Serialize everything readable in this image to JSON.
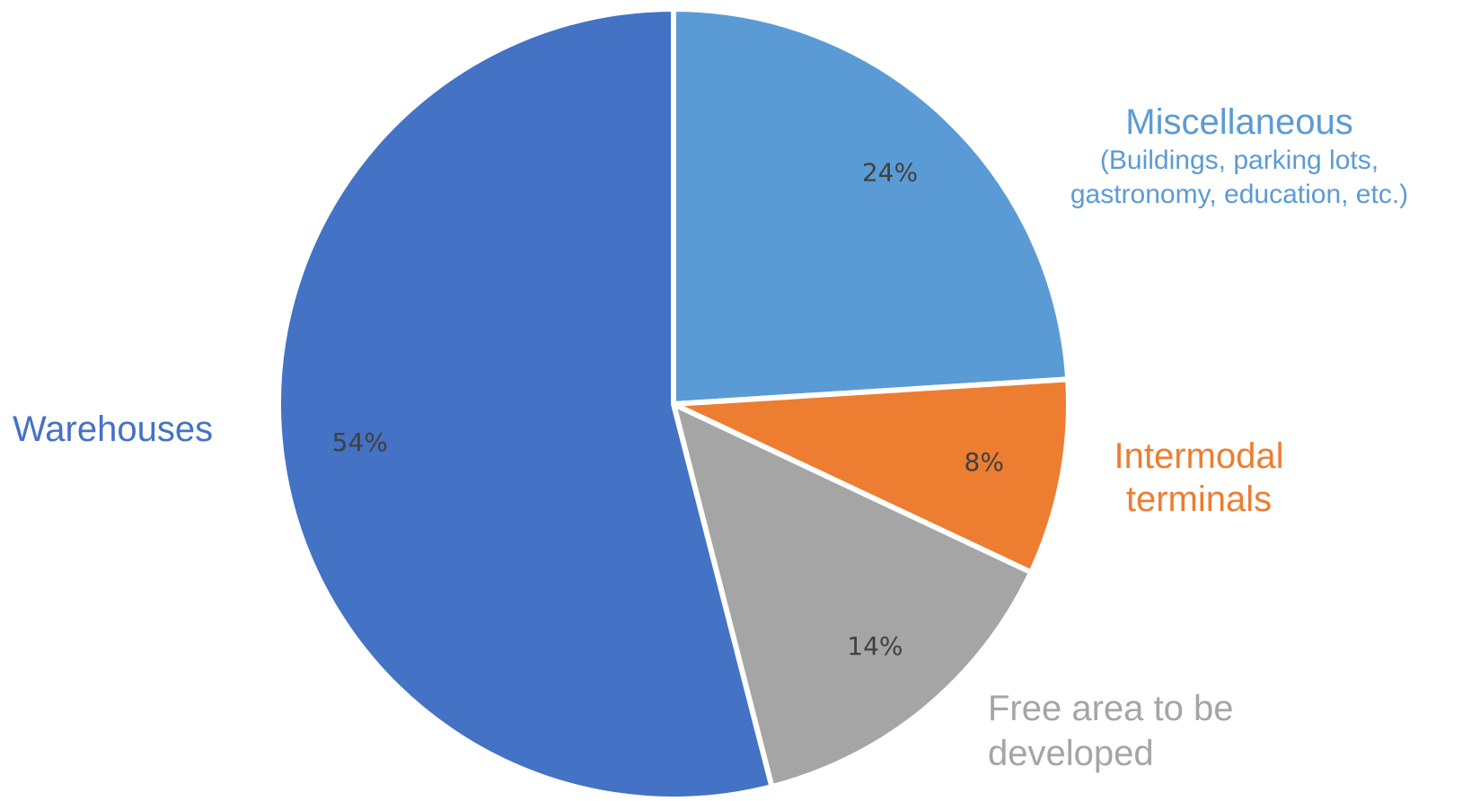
{
  "chart_data": {
    "type": "pie",
    "title": "",
    "slices": [
      {
        "label": "Miscellaneous",
        "sublabel": "(Buildings, parking lots, gastronomy, education, etc.)",
        "value": 24,
        "value_label": "24%",
        "color": "#5b9bd5"
      },
      {
        "label": "Intermodal terminals",
        "sublabel": "",
        "value": 8,
        "value_label": "8%",
        "color": "#ed7d31"
      },
      {
        "label": "Free area to be developed",
        "sublabel": "",
        "value": 14,
        "value_label": "14%",
        "color": "#a5a5a5"
      },
      {
        "label": "Warehouses",
        "sublabel": "",
        "value": 54,
        "value_label": "54%",
        "color": "#4472c4"
      }
    ],
    "start_angle_deg": 0,
    "direction": "clockwise",
    "legend": "none",
    "label_text_color": "#404040"
  }
}
